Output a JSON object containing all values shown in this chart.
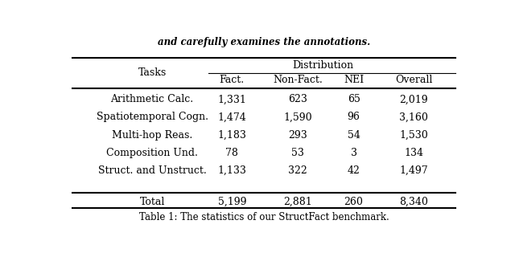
{
  "header_top": "and carefully examines the annotations.",
  "caption": "Table 1: The statistics of our StructFact benchmark.",
  "col_group_header": "Distribution",
  "col_tasks": "Tasks",
  "col_headers": [
    "Fact.",
    "Non-Fact.",
    "NEI",
    "Overall"
  ],
  "rows": [
    {
      "task": "Arithmetic Calc.",
      "fact": "1,331",
      "nonfact": "623",
      "nei": "65",
      "overall": "2,019"
    },
    {
      "task": "Spatiotemporal Cogn.",
      "fact": "1,474",
      "nonfact": "1,590",
      "nei": "96",
      "overall": "3,160"
    },
    {
      "task": "Multi-hop Reas.",
      "fact": "1,183",
      "nonfact": "293",
      "nei": "54",
      "overall": "1,530"
    },
    {
      "task": "Composition Und.",
      "fact": "78",
      "nonfact": "53",
      "nei": "3",
      "overall": "134"
    },
    {
      "task": "Struct. and Unstruct.",
      "fact": "1,133",
      "nonfact": "322",
      "nei": "42",
      "overall": "1,497"
    }
  ],
  "total_row": {
    "task": "Total",
    "fact": "5,199",
    "nonfact": "2,881",
    "nei": "260",
    "overall": "8,340"
  },
  "bg_color": "#ffffff",
  "text_color": "#000000",
  "font_family": "DejaVu Serif"
}
